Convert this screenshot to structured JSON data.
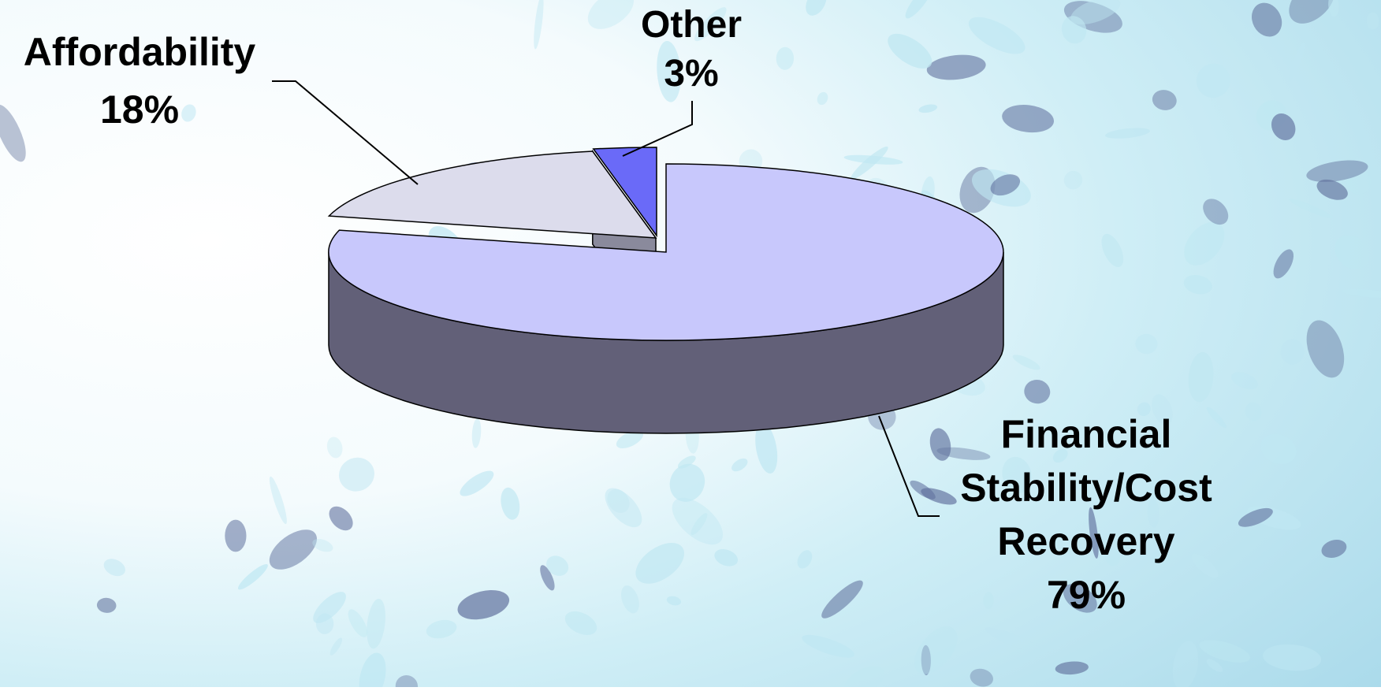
{
  "chart_data": {
    "type": "pie",
    "style": "3d-exploded",
    "categories": [
      "Financial Stability/Cost Recovery",
      "Affordability",
      "Other"
    ],
    "values": [
      79,
      18,
      3
    ],
    "data_labels": [
      {
        "name_lines": [
          "Financial",
          "Stability/Cost",
          "Recovery"
        ],
        "percent": "79%"
      },
      {
        "name_lines": [
          "Affordability"
        ],
        "percent": "18%"
      },
      {
        "name_lines": [
          "Other"
        ],
        "percent": "3%"
      }
    ],
    "unit": "%",
    "legend": "none",
    "colors": {
      "slice_tops": [
        "#c8c8fc",
        "#dcdcec",
        "#6a6af8"
      ],
      "slice_sides": [
        "#626078",
        "#8a8a9c",
        "#3838a8"
      ],
      "outline": "#000000",
      "background_light": "#ffffff",
      "background_water": "#bfe7f2",
      "background_dark": "#5f6f9c"
    }
  }
}
